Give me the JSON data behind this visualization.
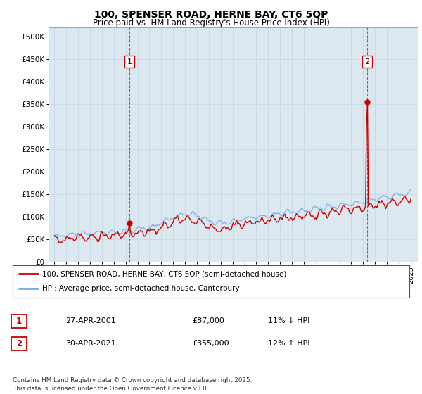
{
  "title": "100, SPENSER ROAD, HERNE BAY, CT6 5QP",
  "subtitle": "Price paid vs. HM Land Registry's House Price Index (HPI)",
  "title_fontsize": 10,
  "subtitle_fontsize": 8.5,
  "ylabel_ticks": [
    "£0",
    "£50K",
    "£100K",
    "£150K",
    "£200K",
    "£250K",
    "£300K",
    "£350K",
    "£400K",
    "£450K",
    "£500K"
  ],
  "ytick_values": [
    0,
    50000,
    100000,
    150000,
    200000,
    250000,
    300000,
    350000,
    400000,
    450000,
    500000
  ],
  "ylim": [
    0,
    520000
  ],
  "grid_color": "#c8d8e8",
  "background_color": "#ffffff",
  "plot_bg_color": "#dce8f0",
  "hpi_color": "#7aade0",
  "price_color": "#cc0000",
  "sale1_x": 2001.33,
  "sale1_y": 87000,
  "sale2_x": 2021.33,
  "sale2_y": 355000,
  "legend_line1": "100, SPENSER ROAD, HERNE BAY, CT6 5QP (semi-detached house)",
  "legend_line2": "HPI: Average price, semi-detached house, Canterbury",
  "table_row1": {
    "num": "1",
    "date": "27-APR-2001",
    "price": "£87,000",
    "hpi": "11% ↓ HPI"
  },
  "table_row2": {
    "num": "2",
    "date": "30-APR-2021",
    "price": "£355,000",
    "hpi": "12% ↑ HPI"
  },
  "footer": "Contains HM Land Registry data © Crown copyright and database right 2025.\nThis data is licensed under the Open Government Licence v3.0.",
  "xtick_years": [
    1995,
    1996,
    1997,
    1998,
    1999,
    2000,
    2001,
    2002,
    2003,
    2004,
    2005,
    2006,
    2007,
    2008,
    2009,
    2010,
    2011,
    2012,
    2013,
    2014,
    2015,
    2016,
    2017,
    2018,
    2019,
    2020,
    2021,
    2022,
    2023,
    2024,
    2025
  ]
}
